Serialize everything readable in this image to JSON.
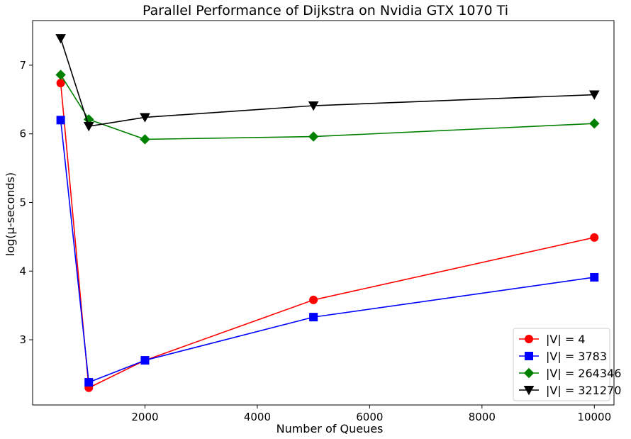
{
  "chart_data": {
    "type": "line",
    "title": "Parallel Performance of Dijkstra on Nvidia GTX 1070 Ti",
    "xlabel": "Number of Queues",
    "ylabel": "log(μ-seconds)",
    "xlim": [
      0,
      10350
    ],
    "ylim": [
      2.05,
      7.65
    ],
    "xticks": [
      2000,
      4000,
      6000,
      8000,
      10000
    ],
    "yticks": [
      3,
      4,
      5,
      6,
      7
    ],
    "grid": false,
    "legend_position": "lower-right",
    "x": [
      500,
      1000,
      2000,
      5000,
      10000
    ],
    "series": [
      {
        "name": "|V| = 4",
        "color": "#ff0000",
        "marker": "circle",
        "values": [
          6.74,
          2.3,
          2.7,
          3.58,
          4.49
        ]
      },
      {
        "name": "|V| = 3783",
        "color": "#0000ff",
        "marker": "square",
        "values": [
          6.2,
          2.38,
          2.7,
          3.33,
          3.91
        ]
      },
      {
        "name": "|V| = 264346",
        "color": "#008000",
        "marker": "diamond",
        "values": [
          6.86,
          6.21,
          5.92,
          5.96,
          6.15
        ]
      },
      {
        "name": "|V| = 321270",
        "color": "#000000",
        "marker": "triangle-down",
        "values": [
          7.39,
          6.11,
          6.24,
          6.41,
          6.57
        ]
      }
    ]
  }
}
